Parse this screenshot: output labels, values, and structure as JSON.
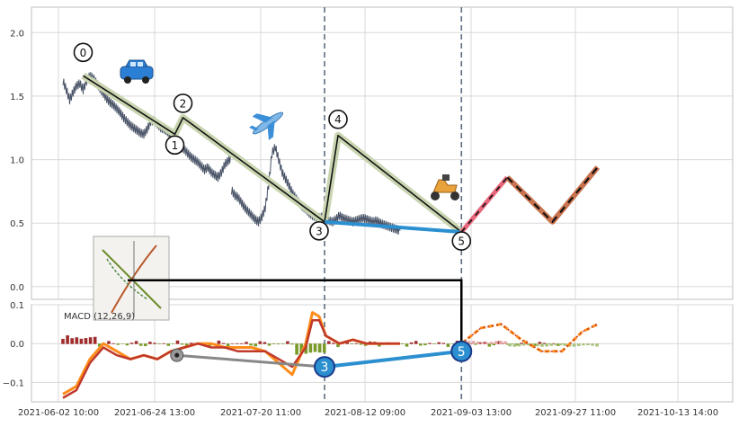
{
  "chart_data": {
    "type": "line",
    "title": "",
    "colors": {
      "background": "#ffffff",
      "panel_bg": "#ffffff",
      "grid": "#d8d8d8",
      "axis": "#bdbdbd",
      "tick_text": "#333333",
      "price_line": "#4a5468",
      "wave_outer": "#c9d5b0",
      "wave_inner": "#111111",
      "divergence_blue": "#2b8fd0",
      "divergence_gray": "#888888",
      "projection_pink": "#e8667a",
      "projection_brown": "#c9734f",
      "projection_dash": "#111111",
      "vline": "#5e6e80",
      "macd_line": "#ff8c1a",
      "macd_signal": "#c0392b",
      "hist_pos": "#a02c2c",
      "hist_neg": "#7a9a2a",
      "connector": "#000000"
    },
    "x_ticks": [
      "2021-06-02 10:00",
      "2021-06-24 13:00",
      "2021-07-20 11:00",
      "2021-08-12 09:00",
      "2021-09-03 13:00",
      "2021-09-27 11:00",
      "2021-10-13 14:00"
    ],
    "upper_panel": {
      "ylim": [
        -0.1,
        2.2
      ],
      "y_ticks": [
        "0.0",
        "0.5",
        "1.0",
        "1.5",
        "2.0"
      ],
      "y_tick_values": [
        0.0,
        0.5,
        1.0,
        1.5,
        2.0
      ],
      "price_series": [
        [
          0.0,
          1.62
        ],
        [
          0.005,
          1.55
        ],
        [
          0.01,
          1.47
        ],
        [
          0.015,
          1.53
        ],
        [
          0.02,
          1.58
        ],
        [
          0.025,
          1.6
        ],
        [
          0.03,
          1.55
        ],
        [
          0.035,
          1.62
        ],
        [
          0.04,
          1.66
        ],
        [
          0.045,
          1.64
        ],
        [
          0.05,
          1.6
        ],
        [
          0.055,
          1.56
        ],
        [
          0.06,
          1.52
        ],
        [
          0.065,
          1.48
        ],
        [
          0.07,
          1.45
        ],
        [
          0.075,
          1.43
        ],
        [
          0.08,
          1.4
        ],
        [
          0.085,
          1.37
        ],
        [
          0.09,
          1.33
        ],
        [
          0.095,
          1.3
        ],
        [
          0.1,
          1.27
        ],
        [
          0.105,
          1.25
        ],
        [
          0.11,
          1.23
        ],
        [
          0.115,
          1.21
        ],
        [
          0.12,
          1.2
        ],
        [
          0.125,
          1.24
        ],
        [
          0.13,
          1.3
        ],
        [
          0.135,
          1.31
        ],
        [
          0.14,
          1.28
        ],
        [
          0.145,
          1.25
        ],
        [
          0.15,
          1.24
        ],
        [
          0.155,
          1.22
        ],
        [
          0.16,
          1.18
        ],
        [
          0.165,
          1.15
        ],
        [
          0.17,
          1.12
        ],
        [
          0.175,
          1.1
        ],
        [
          0.18,
          1.08
        ],
        [
          0.185,
          1.05
        ],
        [
          0.19,
          1.02
        ],
        [
          0.195,
          1.0
        ],
        [
          0.2,
          0.98
        ],
        [
          0.205,
          0.95
        ],
        [
          0.21,
          0.92
        ],
        [
          0.215,
          0.94
        ],
        [
          0.22,
          0.9
        ],
        [
          0.225,
          0.88
        ],
        [
          0.23,
          0.86
        ],
        [
          0.235,
          0.9
        ],
        [
          0.24,
          0.96
        ],
        [
          0.245,
          0.99
        ],
        [
          0.25,
          1.02
        ]
      ],
      "price_series_2": [
        [
          0.25,
          0.76
        ],
        [
          0.255,
          0.72
        ],
        [
          0.26,
          0.7
        ],
        [
          0.265,
          0.66
        ],
        [
          0.27,
          0.62
        ],
        [
          0.275,
          0.59
        ],
        [
          0.28,
          0.56
        ],
        [
          0.285,
          0.53
        ],
        [
          0.29,
          0.51
        ],
        [
          0.295,
          0.55
        ],
        [
          0.3,
          0.62
        ],
        [
          0.305,
          0.8
        ],
        [
          0.31,
          1.05
        ],
        [
          0.315,
          1.1
        ],
        [
          0.32,
          1.0
        ],
        [
          0.325,
          0.9
        ],
        [
          0.33,
          0.85
        ],
        [
          0.335,
          0.8
        ],
        [
          0.34,
          0.74
        ],
        [
          0.345,
          0.7
        ],
        [
          0.35,
          0.66
        ],
        [
          0.355,
          0.63
        ],
        [
          0.36,
          0.61
        ],
        [
          0.365,
          0.58
        ],
        [
          0.37,
          0.56
        ],
        [
          0.375,
          0.55
        ],
        [
          0.38,
          0.54
        ],
        [
          0.385,
          0.55
        ],
        [
          0.39,
          0.53
        ],
        [
          0.395,
          0.52
        ],
        [
          0.4,
          0.51
        ],
        [
          0.405,
          0.53
        ],
        [
          0.41,
          0.56
        ],
        [
          0.415,
          0.54
        ],
        [
          0.42,
          0.53
        ],
        [
          0.425,
          0.52
        ],
        [
          0.43,
          0.51
        ],
        [
          0.435,
          0.52
        ],
        [
          0.44,
          0.53
        ],
        [
          0.445,
          0.54
        ],
        [
          0.45,
          0.53
        ],
        [
          0.455,
          0.52
        ],
        [
          0.46,
          0.51
        ],
        [
          0.465,
          0.52
        ],
        [
          0.47,
          0.5
        ],
        [
          0.475,
          0.49
        ],
        [
          0.48,
          0.48
        ],
        [
          0.485,
          0.47
        ],
        [
          0.49,
          0.46
        ],
        [
          0.495,
          0.45
        ],
        [
          0.5,
          0.44
        ]
      ],
      "wave": [
        [
          0.03,
          1.66
        ],
        [
          0.166,
          1.2
        ],
        [
          0.178,
          1.33
        ],
        [
          0.388,
          0.51
        ],
        [
          0.408,
          1.19
        ],
        [
          0.591,
          0.43
        ]
      ],
      "wave_labels": [
        "0",
        "1",
        "2",
        "3",
        "4",
        "5"
      ],
      "divergence_line": [
        [
          0.388,
          0.51
        ],
        [
          0.591,
          0.43
        ]
      ],
      "projection_pink": [
        [
          0.591,
          0.43
        ],
        [
          0.659,
          0.86
        ]
      ],
      "projection_brown": [
        [
          0.659,
          0.86
        ],
        [
          0.726,
          0.51
        ],
        [
          0.793,
          0.94
        ]
      ],
      "vlines": [
        0.388,
        0.591
      ]
    },
    "lower_panel": {
      "label": "MACD (12,26,9)",
      "ylim": [
        -0.15,
        0.1
      ],
      "y_ticks": [
        "0.1",
        "0.0",
        "−0.1"
      ],
      "y_tick_values": [
        0.1,
        0.0,
        -0.1
      ],
      "macd": [
        [
          0.0,
          -0.13
        ],
        [
          0.02,
          -0.11
        ],
        [
          0.04,
          -0.04
        ],
        [
          0.06,
          0.0
        ],
        [
          0.08,
          -0.02
        ],
        [
          0.1,
          -0.04
        ],
        [
          0.12,
          -0.03
        ],
        [
          0.14,
          -0.04
        ],
        [
          0.16,
          -0.02
        ],
        [
          0.18,
          -0.01
        ],
        [
          0.2,
          0.0
        ],
        [
          0.22,
          0.0
        ],
        [
          0.24,
          -0.01
        ],
        [
          0.26,
          -0.01
        ],
        [
          0.28,
          -0.01
        ],
        [
          0.3,
          -0.02
        ],
        [
          0.34,
          -0.08
        ],
        [
          0.36,
          0.0
        ],
        [
          0.37,
          0.08
        ],
        [
          0.38,
          0.07
        ],
        [
          0.39,
          0.02
        ],
        [
          0.41,
          0.0
        ],
        [
          0.43,
          0.01
        ],
        [
          0.45,
          0.0
        ],
        [
          0.47,
          0.0
        ],
        [
          0.5,
          0.0
        ]
      ],
      "signal": [
        [
          0.0,
          -0.14
        ],
        [
          0.02,
          -0.12
        ],
        [
          0.04,
          -0.05
        ],
        [
          0.06,
          -0.01
        ],
        [
          0.08,
          -0.03
        ],
        [
          0.1,
          -0.04
        ],
        [
          0.12,
          -0.03
        ],
        [
          0.14,
          -0.04
        ],
        [
          0.16,
          -0.02
        ],
        [
          0.18,
          -0.01
        ],
        [
          0.2,
          0.0
        ],
        [
          0.22,
          -0.01
        ],
        [
          0.24,
          -0.01
        ],
        [
          0.26,
          -0.02
        ],
        [
          0.28,
          -0.02
        ],
        [
          0.3,
          -0.02
        ],
        [
          0.34,
          -0.06
        ],
        [
          0.36,
          -0.01
        ],
        [
          0.37,
          0.06
        ],
        [
          0.38,
          0.06
        ],
        [
          0.39,
          0.02
        ],
        [
          0.41,
          0.0
        ],
        [
          0.43,
          0.01
        ],
        [
          0.45,
          0.0
        ],
        [
          0.47,
          0.0
        ],
        [
          0.5,
          0.0
        ]
      ],
      "projection": [
        [
          0.591,
          0.0
        ],
        [
          0.62,
          0.04
        ],
        [
          0.65,
          0.05
        ],
        [
          0.68,
          0.01
        ],
        [
          0.71,
          -0.02
        ],
        [
          0.74,
          -0.02
        ],
        [
          0.77,
          0.03
        ],
        [
          0.793,
          0.05
        ]
      ],
      "divergence_blue": [
        [
          0.388,
          -0.06
        ],
        [
          0.591,
          -0.02
        ]
      ],
      "divergence_gray": [
        [
          0.169,
          -0.03
        ],
        [
          0.388,
          -0.06
        ]
      ],
      "markers": [
        {
          "label": "3",
          "x": 0.388,
          "y": -0.06
        },
        {
          "label": "5",
          "x": 0.591,
          "y": -0.02
        }
      ],
      "gray_marker": {
        "x": 0.169,
        "y": -0.03
      }
    },
    "connector": [
      [
        0.096,
        0.05
      ],
      [
        0.591,
        0.05
      ]
    ],
    "icons": [
      "car-icon",
      "airplane-icon",
      "scooter-icon",
      "thumbnail-icon"
    ]
  }
}
